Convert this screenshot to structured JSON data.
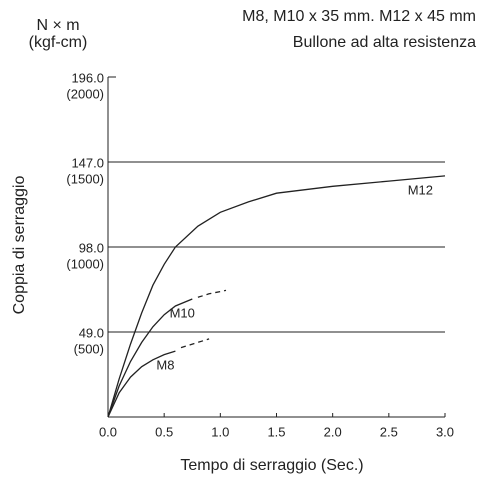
{
  "chart_data": {
    "type": "line",
    "title": "M8, M10 x 35 mm. M12 x 45 mm",
    "subtitle": "Bullone ad alta resistenza",
    "y_unit": "N × m",
    "y_unit_alt": "(kgf-cm)",
    "y_label": "Coppia di serraggio",
    "x_label": "Tempo di serraggio (Sec.)",
    "xlim": [
      0,
      3
    ],
    "ylim": [
      0,
      196
    ],
    "xticks": [
      {
        "value": 0,
        "label": "0.0"
      },
      0.5,
      {
        "value": 1,
        "label": "1.0"
      },
      1.5,
      {
        "value": 2,
        "label": "2.0"
      },
      2.5,
      {
        "value": 3,
        "label": "3.0"
      }
    ],
    "yticks": [
      {
        "value": 49,
        "label": "49.0",
        "alt_label": "(500)"
      },
      {
        "value": 98,
        "label": "98.0",
        "alt_label": "(1000)"
      },
      {
        "value": 147,
        "label": "147.0",
        "alt_label": "(1500)"
      },
      {
        "value": 196,
        "label": "196.0",
        "alt_label": "(2000)"
      }
    ],
    "grid": true,
    "color": "#222222",
    "series": [
      {
        "name": "M12",
        "x": [
          0,
          0.1,
          0.2,
          0.3,
          0.4,
          0.5,
          0.6,
          0.8,
          1.0,
          1.25,
          1.5,
          2.0,
          2.5,
          3.0
        ],
        "values": [
          0,
          22,
          42,
          60,
          76,
          88,
          98,
          110,
          118,
          124,
          129,
          133,
          136,
          139
        ]
      },
      {
        "name": "M10",
        "x": [
          0,
          0.1,
          0.2,
          0.3,
          0.4,
          0.5,
          0.6,
          0.75
        ],
        "values": [
          0,
          18,
          32,
          43,
          52,
          59,
          64,
          68
        ],
        "extension_x": [
          0.8,
          0.9,
          1.05
        ],
        "extension_values": [
          69,
          71,
          73
        ]
      },
      {
        "name": "M8",
        "x": [
          0,
          0.1,
          0.2,
          0.3,
          0.4,
          0.5,
          0.6
        ],
        "values": [
          0,
          14,
          23,
          29,
          33,
          36,
          38
        ],
        "extension_x": [
          0.65,
          0.8,
          0.9
        ],
        "extension_values": [
          40,
          43,
          45
        ]
      }
    ]
  }
}
